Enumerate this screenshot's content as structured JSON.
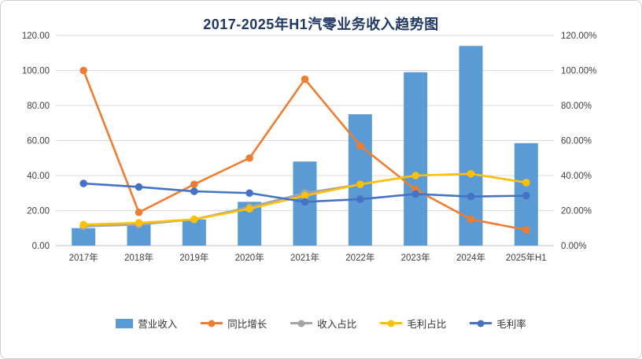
{
  "chart_data": {
    "type": "combo",
    "title": "2017-2025年H1汽零业务收入趋势图",
    "categories": [
      "2017年",
      "2018年",
      "2019年",
      "2020年",
      "2021年",
      "2022年",
      "2023年",
      "2024年",
      "2025年H1"
    ],
    "left_axis": {
      "min": 0,
      "max": 120,
      "step": 20,
      "ticks": [
        "0.00",
        "20.00",
        "40.00",
        "60.00",
        "80.00",
        "100.00",
        "120.00"
      ]
    },
    "right_axis": {
      "min": 0,
      "max": 1.2,
      "step": 0.2,
      "ticks": [
        "0.00%",
        "20.00%",
        "40.00%",
        "60.00%",
        "80.00%",
        "100.00%",
        "120.00%"
      ]
    },
    "grid": true,
    "legend_position": "bottom",
    "series": [
      {
        "name": "营业收入",
        "type": "bar",
        "axis": "left",
        "color": "#5B9BD5",
        "values": [
          10,
          13,
          15,
          25,
          48,
          75,
          99,
          114,
          58.5
        ]
      },
      {
        "name": "同比增长",
        "type": "line",
        "axis": "right",
        "color": "#ED7D31",
        "values": [
          1.0,
          0.19,
          0.35,
          0.5,
          0.95,
          0.57,
          0.32,
          0.15,
          0.09
        ]
      },
      {
        "name": "收入占比",
        "type": "line",
        "axis": "right",
        "color": "#A5A5A5",
        "values": [
          0.11,
          0.12,
          0.15,
          0.22,
          0.3,
          0.35,
          0.4,
          0.41,
          0.36
        ]
      },
      {
        "name": "毛利占比",
        "type": "line",
        "axis": "right",
        "color": "#FFC000",
        "values": [
          0.12,
          0.13,
          0.15,
          0.21,
          0.285,
          0.35,
          0.4,
          0.41,
          0.36
        ]
      },
      {
        "name": "毛利率",
        "type": "line",
        "axis": "right",
        "color": "#4472C4",
        "values": [
          0.355,
          0.335,
          0.31,
          0.3,
          0.25,
          0.265,
          0.295,
          0.28,
          0.285
        ]
      }
    ]
  }
}
